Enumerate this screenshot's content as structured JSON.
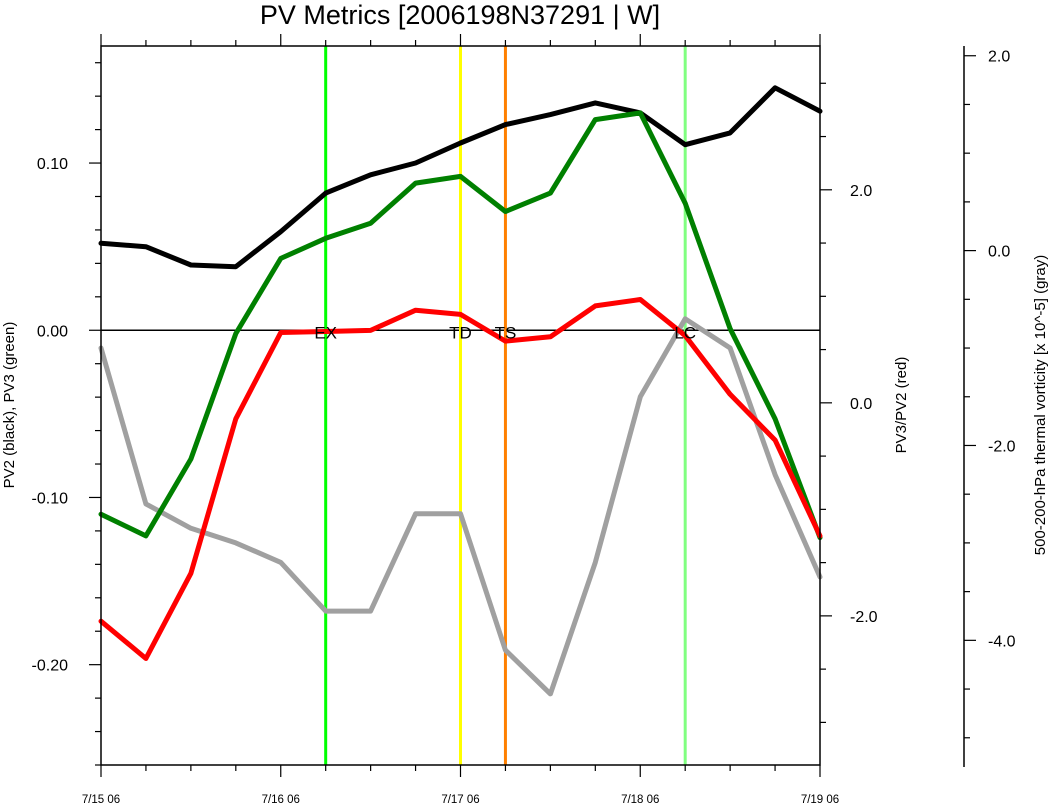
{
  "chart_data": {
    "type": "line",
    "title": "PV Metrics [2006198N37291 | W]",
    "x_tick_labels": [
      "7/15 06",
      "7/16 06",
      "7/17 06",
      "7/18 06",
      "7/19 06"
    ],
    "x_tick_positions": [
      0,
      1,
      2,
      3,
      4
    ],
    "x_unit": "days since 7/15 06",
    "left_axis": {
      "label": "PV2 (black), PV3 (green)",
      "ylim": [
        -0.26,
        0.17
      ],
      "ticks": [
        -0.2,
        -0.1,
        0.0,
        0.1
      ],
      "tick_labels": [
        "-0.20",
        "-0.10",
        "0.00",
        "0.10"
      ]
    },
    "right_axis": {
      "label": "PV3/PV2 (red)",
      "ylim": [
        -3.4,
        3.35
      ],
      "ticks": [
        -2,
        0,
        2
      ],
      "tick_labels": [
        "-2.0",
        "0.0",
        "2.0"
      ]
    },
    "far_right_axis": {
      "label": "500-200-hPa thermal vorticity [x 10^-5] (gray)",
      "ylim": [
        -5.3,
        2.1
      ],
      "ticks": [
        -4,
        -2,
        0,
        2
      ],
      "tick_labels": [
        "-4.0",
        "-2.0",
        "0.0",
        "2.0"
      ]
    },
    "x": [
      0,
      0.25,
      0.5,
      0.75,
      1.0,
      1.25,
      1.5,
      1.75,
      2.0,
      2.25,
      2.5,
      2.75,
      3.0,
      3.25,
      3.5,
      3.75,
      4.0
    ],
    "series": [
      {
        "name": "PV2",
        "axis": "left",
        "color": "#000000",
        "values": [
          0.052,
          0.05,
          0.039,
          0.038,
          0.059,
          0.082,
          0.093,
          0.1,
          0.112,
          0.123,
          0.129,
          0.136,
          0.13,
          0.111,
          0.118,
          0.145,
          0.131
        ]
      },
      {
        "name": "PV3",
        "axis": "left",
        "color": "#008000",
        "values": [
          -0.11,
          -0.123,
          -0.077,
          -0.002,
          0.043,
          0.055,
          0.064,
          0.088,
          0.092,
          0.071,
          0.082,
          0.126,
          0.13,
          0.076,
          0.001,
          -0.053,
          -0.124
        ]
      },
      {
        "name": "PV3/PV2",
        "axis": "right",
        "color": "#ff0000",
        "values": [
          -2.05,
          -2.4,
          -1.6,
          -0.15,
          0.66,
          0.67,
          0.68,
          0.87,
          0.83,
          0.58,
          0.62,
          0.91,
          0.97,
          0.63,
          0.08,
          -0.35,
          -1.25
        ]
      },
      {
        "name": "thermal vorticity",
        "axis": "far_right",
        "color": "#a0a0a0",
        "values": [
          -1.0,
          -2.6,
          -2.85,
          -3.0,
          -3.2,
          -3.7,
          -3.7,
          -2.7,
          -2.7,
          -4.1,
          -4.55,
          -3.2,
          -1.5,
          -0.7,
          -1.0,
          -2.3,
          -3.35
        ]
      }
    ],
    "events": [
      {
        "label": "EX",
        "x": 1.25,
        "color": "#00ff00"
      },
      {
        "label": "TD",
        "x": 2.0,
        "color": "#ffff00"
      },
      {
        "label": "TS",
        "x": 2.25,
        "color": "#ff8000"
      },
      {
        "label": "LC",
        "x": 3.25,
        "color": "#80ff80"
      }
    ],
    "zero_line": true,
    "grid": false,
    "legend": "none"
  }
}
